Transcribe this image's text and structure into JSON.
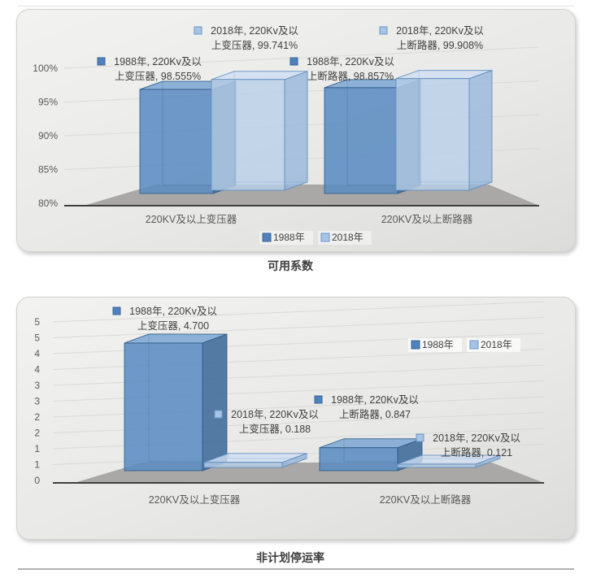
{
  "colors": {
    "floor": "#a9a8a6",
    "axis_line": "#3f3f3f",
    "grid_line": "#d8d7d5",
    "tick_text": "#595959",
    "category_text": "#595959",
    "label_text": "#404040",
    "title_text": "#3c3c3c",
    "panel_border": "#d2d1cf",
    "legend_bg": "#ffffff"
  },
  "series_styles": [
    {
      "name": "1988年",
      "face": "#5b8cc1",
      "top": "#7fa9d3",
      "side": "#3e6a99",
      "stroke": "#2f5c88",
      "marker": "#4f81bd",
      "marker_stroke": "#3a6597",
      "opacity": 0.88
    },
    {
      "name": "2018年",
      "face": "#b8cfe9",
      "top": "#cfdff2",
      "side": "#96b6dc",
      "stroke": "#5f8dc0",
      "marker": "#a7c4e6",
      "marker_stroke": "#6b97c6",
      "opacity": 0.8
    }
  ],
  "chart_data": [
    {
      "type": "bar3d",
      "title": "可用系数",
      "categories": [
        "220KV及以上变压器",
        "220KV及以上断路器"
      ],
      "series": [
        {
          "name": "1988年",
          "values": [
            98.555,
            98.857
          ]
        },
        {
          "name": "2018年",
          "values": [
            99.741,
            99.908
          ]
        }
      ],
      "value_suffix": "%",
      "ylim": [
        80,
        100
      ],
      "ytick_labels": [
        "100%",
        "95%",
        "90%",
        "85%",
        "80%"
      ],
      "grid": true,
      "legend": {
        "position": "bottom-center",
        "items": [
          "1988年",
          "2018年"
        ]
      },
      "data_labels": [
        {
          "series": "1988年",
          "lines": [
            "1988年, 220Kv及以",
            "上变压器, 98.555%"
          ]
        },
        {
          "series": "2018年",
          "lines": [
            "2018年, 220Kv及以",
            "上变压器, 99.741%"
          ]
        },
        {
          "series": "1988年",
          "lines": [
            "1988年, 220Kv及以",
            "上断路器, 98.857%"
          ]
        },
        {
          "series": "2018年",
          "lines": [
            "2018年, 220Kv及以",
            "上断路器, 99.908%"
          ]
        }
      ]
    },
    {
      "type": "bar3d",
      "title": "非计划停运率",
      "categories": [
        "220KV及以上变压器",
        "220KV及以上断路器"
      ],
      "series": [
        {
          "name": "1988年",
          "values": [
            4.7,
            0.847
          ]
        },
        {
          "name": "2018年",
          "values": [
            0.188,
            0.121
          ]
        }
      ],
      "value_suffix": "",
      "ylim": [
        0,
        5
      ],
      "ytick_labels": [
        "5",
        "5",
        "4",
        "4",
        "3",
        "3",
        "2",
        "2",
        "1",
        "1",
        "0"
      ],
      "grid": true,
      "legend": {
        "position": "inside-top-right",
        "items": [
          "1988年",
          "2018年"
        ]
      },
      "data_labels": [
        {
          "series": "1988年",
          "lines": [
            "1988年, 220Kv及以",
            "上变压器, 4.700"
          ]
        },
        {
          "series": "2018年",
          "lines": [
            "2018年, 220Kv及以",
            "上变压器, 0.188"
          ]
        },
        {
          "series": "1988年",
          "lines": [
            "1988年, 220Kv及以",
            "上断路器, 0.847"
          ]
        },
        {
          "series": "2018年",
          "lines": [
            "2018年, 220Kv及以",
            "上断路器, 0.121"
          ]
        }
      ]
    }
  ]
}
